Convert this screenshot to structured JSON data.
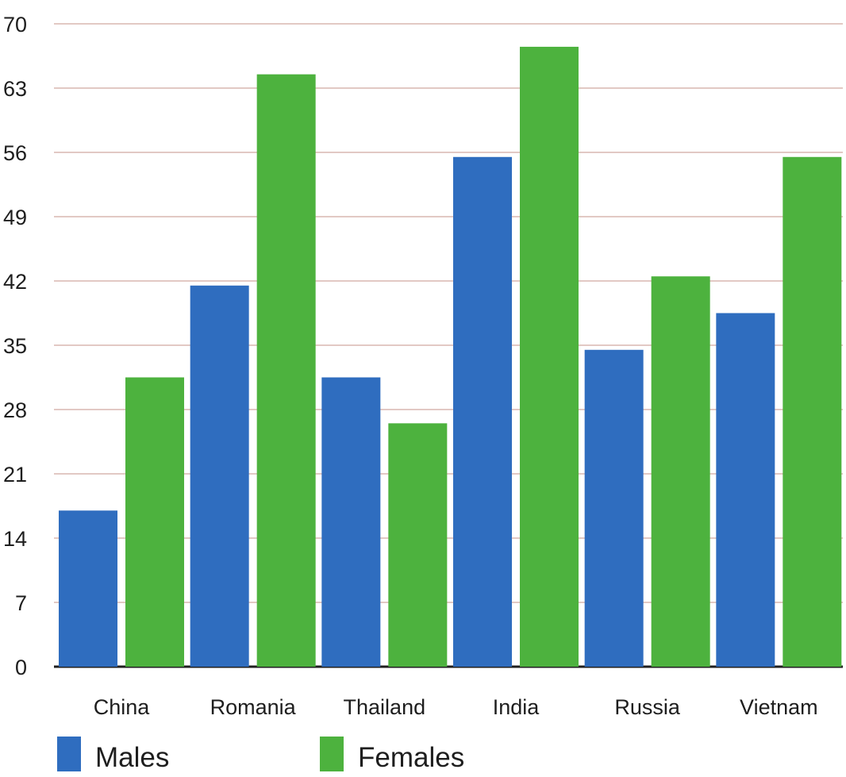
{
  "chart_data": {
    "type": "bar",
    "categories": [
      "China",
      "Romania",
      "Thailand",
      "India",
      "Russia",
      "Vietnam"
    ],
    "series": [
      {
        "name": "Males",
        "values": [
          17,
          41.5,
          31.5,
          55.5,
          34.5,
          38.5
        ],
        "color": "#2f6dbf"
      },
      {
        "name": "Females",
        "values": [
          31.5,
          64.5,
          26.5,
          67.5,
          42.5,
          55.5
        ],
        "color": "#4db23e"
      }
    ],
    "ylim": [
      0,
      70
    ],
    "yticks": [
      "0",
      "7",
      "14",
      "21",
      "28",
      "35",
      "42",
      "49",
      "56",
      "63",
      "70"
    ],
    "grid": true,
    "legend_position": "bottom-left",
    "title": "",
    "xlabel": "",
    "ylabel": ""
  }
}
